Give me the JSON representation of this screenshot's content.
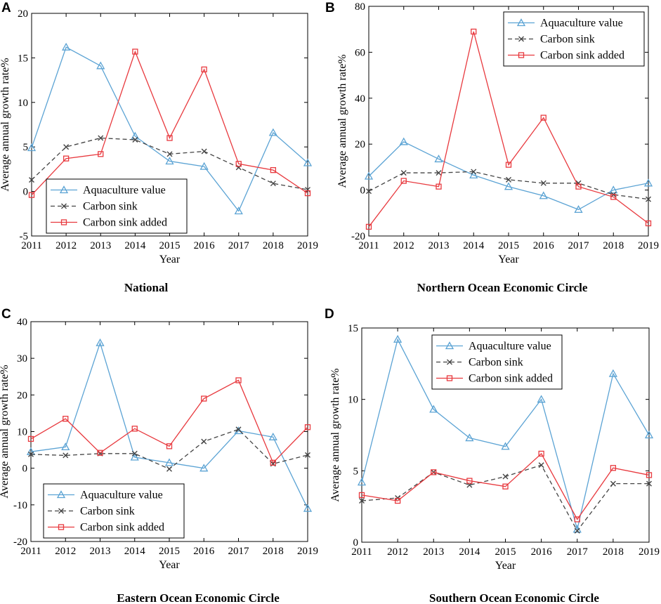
{
  "colors": {
    "aquaculture": "#5ba3d4",
    "carbon_sink": "#444444",
    "carbon_sink_added": "#e8393e"
  },
  "chart_data": [
    {
      "id": "A",
      "letter": "A",
      "type": "line",
      "subtitle": "National",
      "xlabel": "Year",
      "ylabel": "Average annual growth rate%",
      "categories": [
        "2011",
        "2012",
        "2013",
        "2014",
        "2015",
        "2016",
        "2017",
        "2018",
        "2019"
      ],
      "ylim": [
        -5,
        20
      ],
      "yticks": [
        -5,
        0,
        5,
        10,
        15,
        20
      ],
      "legend_position": "bottom-left",
      "series": [
        {
          "key": "aquaculture",
          "name": "Aquaculture value",
          "marker": "triangle",
          "dash": "solid",
          "values": [
            4.9,
            16.2,
            14.1,
            6.2,
            3.4,
            2.8,
            -2.2,
            6.6,
            3.2
          ]
        },
        {
          "key": "carbon_sink",
          "name": "Carbon sink",
          "marker": "x",
          "dash": "dashed",
          "values": [
            1.3,
            5.0,
            6.0,
            5.8,
            4.2,
            4.5,
            2.7,
            0.9,
            0.2
          ]
        },
        {
          "key": "carbon_sink_added",
          "name": "Carbon sink added",
          "marker": "square",
          "dash": "solid",
          "values": [
            -0.4,
            3.7,
            4.2,
            15.7,
            6.0,
            13.7,
            3.1,
            2.4,
            -0.2
          ]
        }
      ]
    },
    {
      "id": "B",
      "letter": "B",
      "type": "line",
      "subtitle": "Northern Ocean Economic Circle",
      "xlabel": "Year",
      "ylabel": "Average annual growth rate%",
      "categories": [
        "2011",
        "2012",
        "2013",
        "2014",
        "2015",
        "2016",
        "2017",
        "2018",
        "2019"
      ],
      "ylim": [
        -20,
        80
      ],
      "yticks": [
        -20,
        0,
        20,
        40,
        60,
        80
      ],
      "legend_position": "top-right",
      "series": [
        {
          "key": "aquaculture",
          "name": "Aquaculture value",
          "marker": "triangle",
          "dash": "solid",
          "values": [
            6,
            21,
            13.5,
            6.5,
            1.5,
            -2.5,
            -8.5,
            0,
            3
          ]
        },
        {
          "key": "carbon_sink",
          "name": "Carbon sink",
          "marker": "x",
          "dash": "dashed",
          "values": [
            -0.5,
            7.5,
            7.5,
            8,
            4.5,
            3,
            3,
            -2,
            -4
          ]
        },
        {
          "key": "carbon_sink_added",
          "name": "Carbon sink added",
          "marker": "square",
          "dash": "solid",
          "values": [
            -16,
            4,
            1.5,
            69,
            11,
            31.5,
            1.5,
            -3,
            -14.5
          ]
        }
      ]
    },
    {
      "id": "C",
      "letter": "C",
      "type": "line",
      "subtitle": "Eastern Ocean Economic Circle",
      "xlabel": "Year",
      "ylabel": "Average annual growth rate%",
      "categories": [
        "2011",
        "2012",
        "2013",
        "2014",
        "2015",
        "2016",
        "2017",
        "2018",
        "2019"
      ],
      "ylim": [
        -20,
        40
      ],
      "yticks": [
        -20,
        -10,
        0,
        10,
        20,
        30,
        40
      ],
      "legend_position": "bottom-left",
      "series": [
        {
          "key": "aquaculture",
          "name": "Aquaculture value",
          "marker": "triangle",
          "dash": "solid",
          "values": [
            4.5,
            5.8,
            34.2,
            3.0,
            1.5,
            0,
            10.2,
            8.5,
            -11
          ]
        },
        {
          "key": "carbon_sink",
          "name": "Carbon sink",
          "marker": "x",
          "dash": "dashed",
          "values": [
            3.8,
            3.5,
            4.0,
            4.0,
            -0.2,
            7.3,
            10.6,
            1.2,
            3.6
          ]
        },
        {
          "key": "carbon_sink_added",
          "name": "Carbon sink added",
          "marker": "square",
          "dash": "solid",
          "values": [
            8.0,
            13.5,
            4.2,
            10.8,
            6.0,
            19.0,
            24.0,
            1.5,
            11.2
          ]
        }
      ]
    },
    {
      "id": "D",
      "letter": "D",
      "type": "line",
      "subtitle": "Southern Ocean Economic Circle",
      "xlabel": "Year",
      "ylabel": "Average annual growth rate%",
      "categories": [
        "2011",
        "2012",
        "2013",
        "2014",
        "2015",
        "2016",
        "2017",
        "2018",
        "2019"
      ],
      "ylim": [
        0,
        15
      ],
      "yticks": [
        0,
        5,
        10,
        15
      ],
      "legend_position": "top-center",
      "series": [
        {
          "key": "aquaculture",
          "name": "Aquaculture value",
          "marker": "triangle",
          "dash": "solid",
          "values": [
            4.2,
            14.2,
            9.3,
            7.3,
            6.7,
            10.0,
            0.9,
            11.8,
            7.5
          ]
        },
        {
          "key": "carbon_sink",
          "name": "Carbon sink",
          "marker": "x",
          "dash": "dashed",
          "values": [
            2.9,
            3.1,
            4.9,
            4.0,
            4.6,
            5.4,
            0.8,
            4.1,
            4.1
          ]
        },
        {
          "key": "carbon_sink_added",
          "name": "Carbon sink added",
          "marker": "square",
          "dash": "solid",
          "values": [
            3.3,
            2.9,
            4.9,
            4.3,
            3.9,
            6.2,
            1.6,
            5.2,
            4.7
          ]
        }
      ]
    }
  ]
}
